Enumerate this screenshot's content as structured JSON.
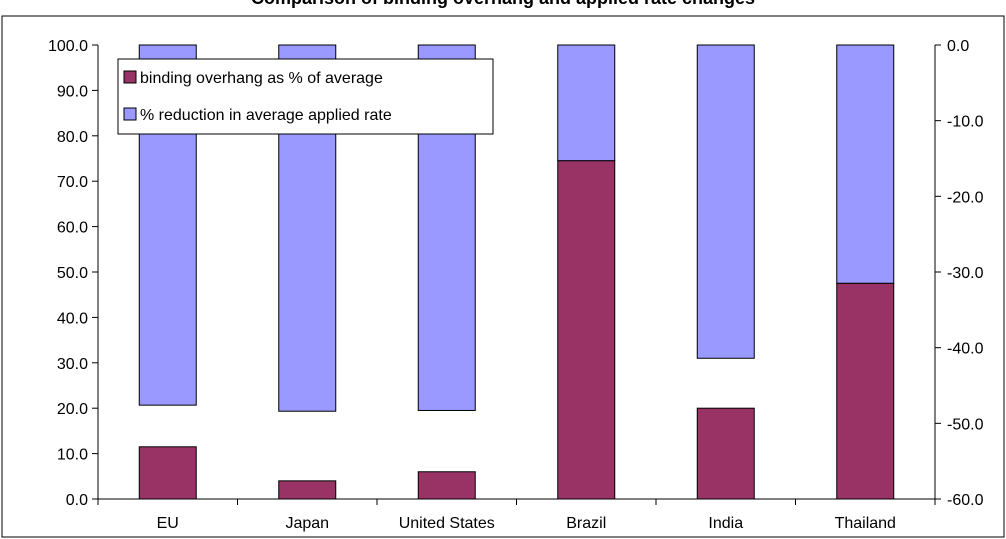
{
  "chart_data": {
    "type": "bar",
    "title": "Comparison of binding overhang and applied rate changes",
    "categories": [
      "EU",
      "Japan",
      "United States",
      "Brazil",
      "India",
      "Thailand"
    ],
    "series": [
      {
        "name": "binding overhang as % of average",
        "axis": "left",
        "color": "#993366",
        "values": [
          11.5,
          4.0,
          6.0,
          74.5,
          20.0,
          47.5
        ]
      },
      {
        "name": "% reduction in average applied rate",
        "axis": "right",
        "color": "#9999FF",
        "values": [
          -47.6,
          -48.4,
          -48.3,
          -15.3,
          -41.4,
          -31.5
        ]
      }
    ],
    "y_left": {
      "min": 0,
      "max": 100,
      "step": 10,
      "tick_labels": [
        "0.0",
        "10.0",
        "20.0",
        "30.0",
        "40.0",
        "50.0",
        "60.0",
        "70.0",
        "80.0",
        "90.0",
        "100.0"
      ]
    },
    "y_right": {
      "min": -60,
      "max": 0,
      "step": 10,
      "tick_labels": [
        "-60.0",
        "-50.0",
        "-40.0",
        "-30.0",
        "-20.0",
        "-10.0",
        "0.0"
      ]
    },
    "grid": false,
    "legend_position": "top-left",
    "colors": {
      "overhang": "#993366",
      "reduction": "#9999FF",
      "outline": "#000000",
      "background": "#FFFFFF"
    }
  }
}
